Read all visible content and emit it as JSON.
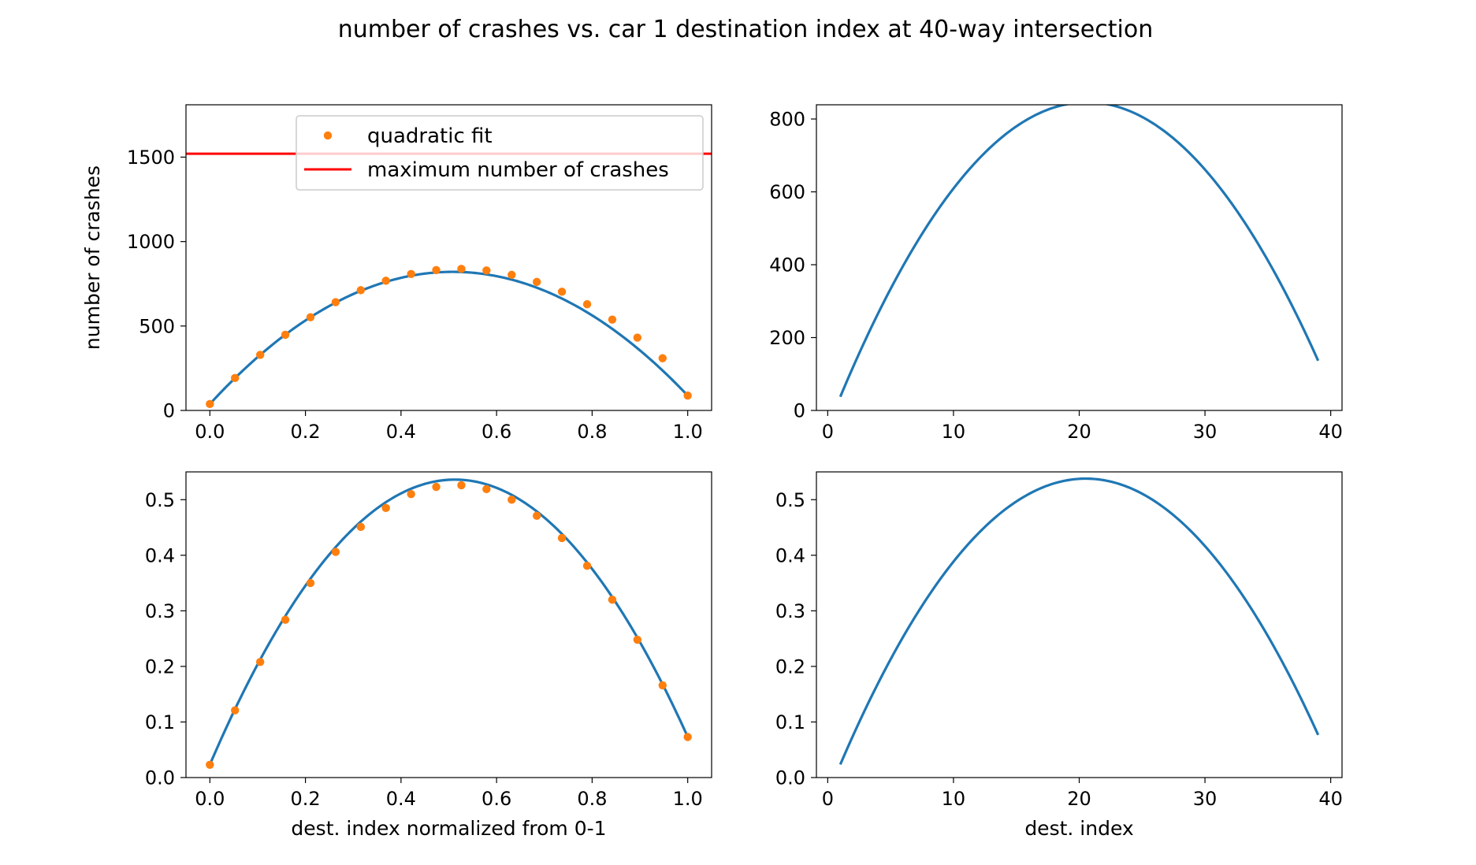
{
  "figure": {
    "title": "number of crashes vs. car 1 destination index at 40-way intersection"
  },
  "colors": {
    "fit_line": "#1f77b4",
    "fit_points": "#ff7f0e",
    "max_line": "#ff0000"
  },
  "chart_data": [
    {
      "type": "line",
      "panel": "top-left",
      "xlabel": "",
      "ylabel": "number of crashes",
      "xlim": [
        -0.05,
        1.05
      ],
      "ylim": [
        0,
        1810
      ],
      "xticks": [
        0.0,
        0.2,
        0.4,
        0.6,
        0.8,
        1.0
      ],
      "xtick_labels": [
        "0.0",
        "0.2",
        "0.4",
        "0.6",
        "0.8",
        "1.0"
      ],
      "yticks": [
        0,
        500,
        1000,
        1500
      ],
      "ytick_labels": [
        "0",
        "500",
        "1000",
        "1500"
      ],
      "curve": {
        "type": "quadratic",
        "coefficients": [
          -3030,
          3080,
          38
        ],
        "x_range": [
          0,
          1
        ]
      },
      "scatter": {
        "x": [
          0.0,
          0.0526,
          0.1053,
          0.1579,
          0.2105,
          0.2632,
          0.3158,
          0.3684,
          0.4211,
          0.4737,
          0.5263,
          0.5789,
          0.6316,
          0.6842,
          0.7368,
          0.7895,
          0.8421,
          0.8947,
          0.9474,
          1.0
        ],
        "y": [
          38,
          192,
          329,
          448,
          552,
          641,
          712,
          768,
          808,
          831,
          838,
          829,
          803,
          761,
          703,
          629,
          538,
          431,
          309,
          88
        ]
      },
      "hline": {
        "y": 1520
      },
      "legend": {
        "position": "upper center",
        "entries": [
          {
            "label": "quadratic fit",
            "kind": "marker"
          },
          {
            "label": "maximum number of crashes",
            "kind": "line"
          }
        ]
      }
    },
    {
      "type": "line",
      "panel": "top-right",
      "xlabel": "",
      "ylabel": "",
      "xlim": [
        -0.9,
        40.9
      ],
      "ylim": [
        0,
        839
      ],
      "xticks": [
        0,
        10,
        20,
        30,
        40
      ],
      "xtick_labels": [
        "0",
        "10",
        "20",
        "30",
        "40"
      ],
      "yticks": [
        0,
        200,
        400,
        600,
        800
      ],
      "ytick_labels": [
        "0",
        "200",
        "400",
        "600",
        "800"
      ],
      "curve": {
        "type": "quadratic",
        "coefficients": [
          -2.1,
          86.6,
          -46.8
        ],
        "x_range": [
          1,
          39
        ]
      }
    },
    {
      "type": "line",
      "panel": "bottom-left",
      "xlabel": "dest. index normalized from 0-1",
      "ylabel": "",
      "xlim": [
        -0.05,
        1.05
      ],
      "ylim": [
        0,
        0.55
      ],
      "xticks": [
        0.0,
        0.2,
        0.4,
        0.6,
        0.8,
        1.0
      ],
      "xtick_labels": [
        "0.0",
        "0.2",
        "0.4",
        "0.6",
        "0.8",
        "1.0"
      ],
      "yticks": [
        0.0,
        0.1,
        0.2,
        0.3,
        0.4,
        0.5
      ],
      "ytick_labels": [
        "0.0",
        "0.1",
        "0.2",
        "0.3",
        "0.4",
        "0.5"
      ],
      "curve": {
        "type": "quadratic",
        "coefficients": [
          -1.95,
          2.0,
          0.0233
        ],
        "x_range": [
          0,
          1
        ]
      },
      "scatter": {
        "x": [
          0.0,
          0.0526,
          0.1053,
          0.1579,
          0.2105,
          0.2632,
          0.3158,
          0.3684,
          0.4211,
          0.4737,
          0.5263,
          0.5789,
          0.6316,
          0.6842,
          0.7368,
          0.7895,
          0.8421,
          0.8947,
          0.9474,
          1.0
        ],
        "y": [
          0.023,
          0.121,
          0.208,
          0.284,
          0.35,
          0.406,
          0.451,
          0.485,
          0.51,
          0.523,
          0.526,
          0.519,
          0.5,
          0.471,
          0.431,
          0.381,
          0.32,
          0.248,
          0.166,
          0.073
        ]
      }
    },
    {
      "type": "line",
      "panel": "bottom-right",
      "xlabel": "dest. index",
      "ylabel": "",
      "xlim": [
        -0.9,
        40.9
      ],
      "ylim": [
        0,
        0.55
      ],
      "xticks": [
        0,
        10,
        20,
        30,
        40
      ],
      "xtick_labels": [
        "0",
        "10",
        "20",
        "30",
        "40"
      ],
      "yticks": [
        0.0,
        0.1,
        0.2,
        0.3,
        0.4,
        0.5
      ],
      "ytick_labels": [
        "0.0",
        "0.1",
        "0.2",
        "0.3",
        "0.4",
        "0.5"
      ],
      "curve": {
        "type": "quadratic",
        "coefficients": [
          -0.00135,
          0.0554,
          -0.0305
        ],
        "x_range": [
          1,
          39
        ]
      }
    }
  ]
}
